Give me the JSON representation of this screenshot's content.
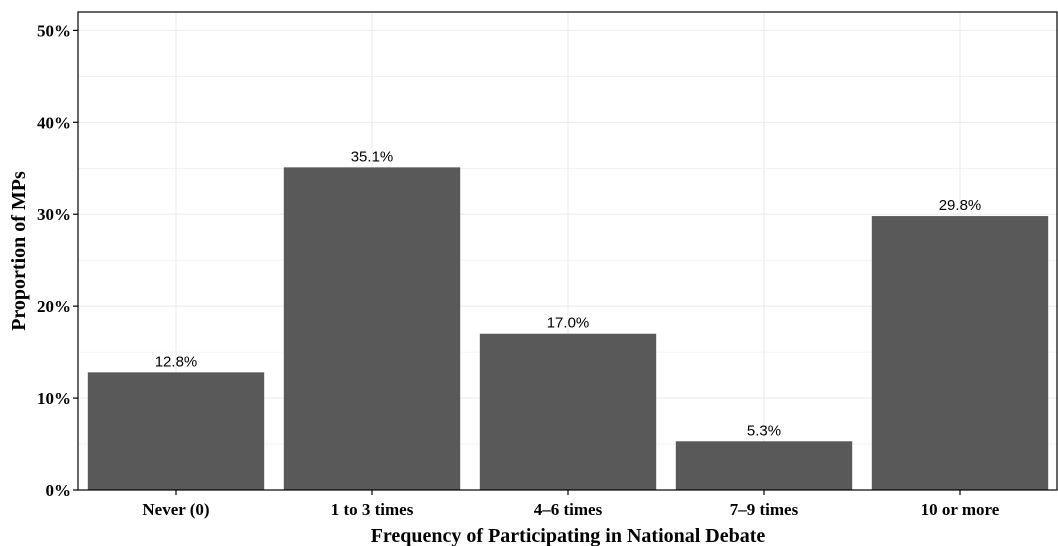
{
  "chart_data": {
    "type": "bar",
    "categories": [
      "Never (0)",
      "1 to 3 times",
      "4–6 times",
      "7–9 times",
      "10 or more"
    ],
    "values": [
      12.8,
      35.1,
      17.0,
      5.3,
      29.8
    ],
    "data_labels": [
      "12.8%",
      "35.1%",
      "17.0%",
      "5.3%",
      "29.8%"
    ],
    "xlabel": "Frequency of Participating in National Debate",
    "ylabel": "Proportion of MPs",
    "ylim": [
      0,
      52
    ],
    "y_ticks": [
      0,
      10,
      20,
      30,
      40,
      50
    ],
    "y_tick_labels": [
      "0%",
      "10%",
      "20%",
      "30%",
      "40%",
      "50%"
    ],
    "grid": true,
    "bar_color": "#595959",
    "grid_color": "#ebebeb"
  }
}
